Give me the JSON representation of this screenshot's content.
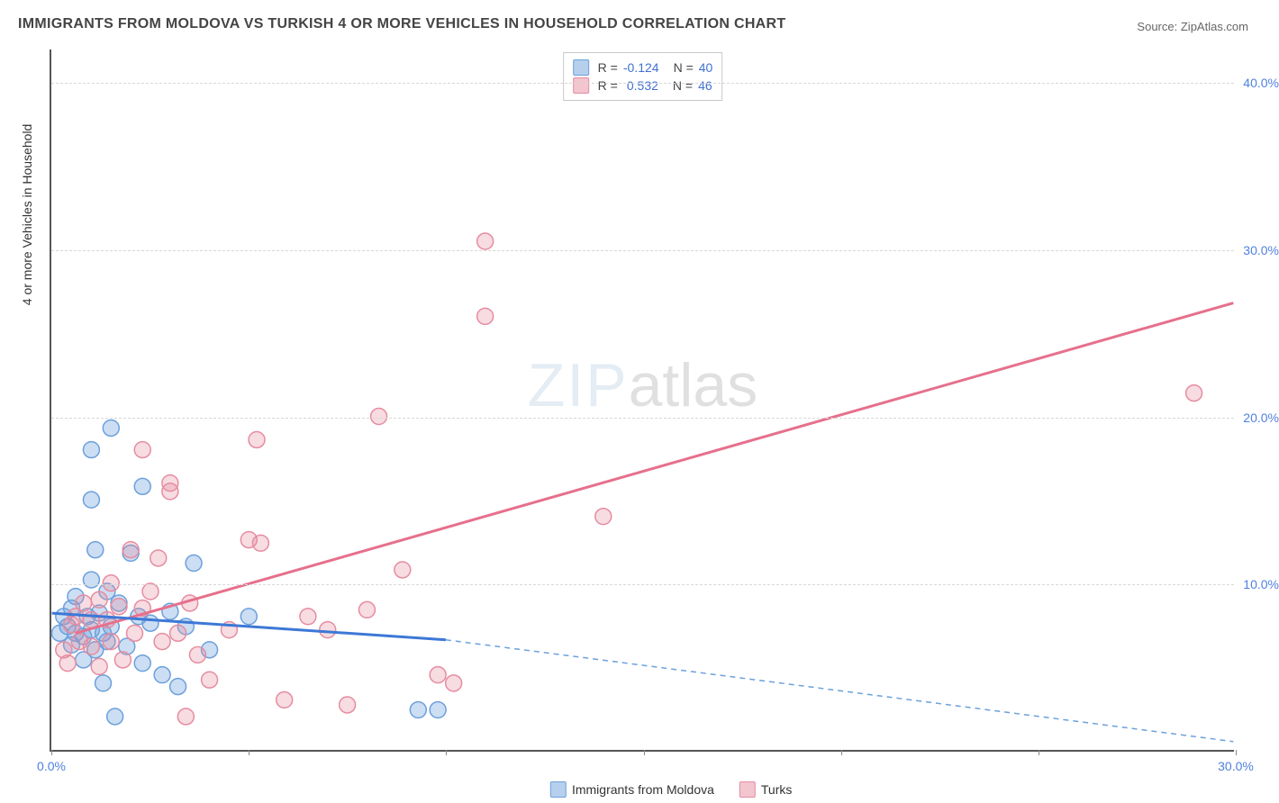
{
  "title": "IMMIGRANTS FROM MOLDOVA VS TURKISH 4 OR MORE VEHICLES IN HOUSEHOLD CORRELATION CHART",
  "source_label": "Source:",
  "source_value": "ZipAtlas.com",
  "y_axis_title": "4 or more Vehicles in Household",
  "watermark_a": "ZIP",
  "watermark_b": "atlas",
  "chart": {
    "type": "scatter-correlation",
    "background_color": "#ffffff",
    "grid_color": "#d8d8d8",
    "axis_color": "#555555",
    "tick_label_color": "#5080e0",
    "xlim": [
      0,
      30
    ],
    "ylim": [
      0,
      42
    ],
    "x_ticks": [
      0,
      5,
      10,
      15,
      20,
      25,
      30
    ],
    "y_ticks": [
      10,
      20,
      30,
      40
    ],
    "x_tick_labels": [
      "0.0%",
      "",
      "",
      "",
      "",
      "",
      "30.0%"
    ],
    "y_tick_labels": [
      "10.0%",
      "20.0%",
      "30.0%",
      "40.0%"
    ],
    "series": {
      "blue": {
        "label": "Immigrants from Moldova",
        "color_fill": "rgba(108,160,220,0.35)",
        "color_stroke": "#6ca0dc",
        "R": "-0.124",
        "N": "40",
        "trend_solid": {
          "x1": 0,
          "y1": 8.2,
          "x2": 10,
          "y2": 6.6
        },
        "trend_dash": {
          "x1": 10,
          "y1": 6.6,
          "x2": 30,
          "y2": 0.5
        },
        "marker_radius": 9,
        "points": [
          [
            0.2,
            7.0
          ],
          [
            0.3,
            8.0
          ],
          [
            0.4,
            7.4
          ],
          [
            0.5,
            6.3
          ],
          [
            0.5,
            8.5
          ],
          [
            0.6,
            7.0
          ],
          [
            0.6,
            9.2
          ],
          [
            0.8,
            6.8
          ],
          [
            0.8,
            5.4
          ],
          [
            0.9,
            8.0
          ],
          [
            1.0,
            7.2
          ],
          [
            1.0,
            10.2
          ],
          [
            1.1,
            6.0
          ],
          [
            1.1,
            12.0
          ],
          [
            1.2,
            8.2
          ],
          [
            1.3,
            7.0
          ],
          [
            1.3,
            4.0
          ],
          [
            1.4,
            9.5
          ],
          [
            1.4,
            6.5
          ],
          [
            1.5,
            7.4
          ],
          [
            1.5,
            19.3
          ],
          [
            1.6,
            2.0
          ],
          [
            1.7,
            8.8
          ],
          [
            1.9,
            6.2
          ],
          [
            2.0,
            11.8
          ],
          [
            2.2,
            8.0
          ],
          [
            2.3,
            5.2
          ],
          [
            2.3,
            15.8
          ],
          [
            2.5,
            7.6
          ],
          [
            1.0,
            18.0
          ],
          [
            1.0,
            15.0
          ],
          [
            2.8,
            4.5
          ],
          [
            3.0,
            8.3
          ],
          [
            3.2,
            3.8
          ],
          [
            3.4,
            7.4
          ],
          [
            3.6,
            11.2
          ],
          [
            4.0,
            6.0
          ],
          [
            9.3,
            2.4
          ],
          [
            9.8,
            2.4
          ],
          [
            5.0,
            8.0
          ]
        ]
      },
      "pink": {
        "label": "Turks",
        "color_fill": "rgba(230,140,160,0.30)",
        "color_stroke": "#e68ca0",
        "R": "0.532",
        "N": "46",
        "trend_solid": {
          "x1": 0.6,
          "y1": 7.0,
          "x2": 30,
          "y2": 26.8
        },
        "marker_radius": 9,
        "points": [
          [
            0.3,
            6.0
          ],
          [
            0.4,
            5.2
          ],
          [
            0.5,
            7.5
          ],
          [
            0.6,
            8.0
          ],
          [
            0.7,
            6.5
          ],
          [
            0.8,
            8.8
          ],
          [
            1.0,
            6.2
          ],
          [
            1.0,
            7.8
          ],
          [
            1.2,
            9.0
          ],
          [
            1.2,
            5.0
          ],
          [
            1.4,
            7.8
          ],
          [
            1.5,
            10.0
          ],
          [
            1.5,
            6.5
          ],
          [
            1.7,
            8.6
          ],
          [
            1.8,
            5.4
          ],
          [
            2.0,
            12.0
          ],
          [
            2.1,
            7.0
          ],
          [
            2.3,
            8.5
          ],
          [
            2.3,
            18.0
          ],
          [
            2.5,
            9.5
          ],
          [
            2.7,
            11.5
          ],
          [
            2.8,
            6.5
          ],
          [
            3.0,
            15.5
          ],
          [
            3.2,
            7.0
          ],
          [
            3.4,
            2.0
          ],
          [
            3.5,
            8.8
          ],
          [
            3.7,
            5.7
          ],
          [
            4.0,
            4.2
          ],
          [
            4.5,
            7.2
          ],
          [
            5.0,
            12.6
          ],
          [
            5.2,
            18.6
          ],
          [
            5.3,
            12.4
          ],
          [
            5.9,
            3.0
          ],
          [
            6.5,
            8.0
          ],
          [
            7.0,
            7.2
          ],
          [
            7.5,
            2.7
          ],
          [
            8.0,
            8.4
          ],
          [
            8.3,
            20.0
          ],
          [
            8.9,
            10.8
          ],
          [
            9.8,
            4.5
          ],
          [
            10.2,
            4.0
          ],
          [
            11.0,
            30.5
          ],
          [
            11.0,
            26.0
          ],
          [
            14.0,
            14.0
          ],
          [
            29.0,
            21.4
          ],
          [
            3.0,
            16.0
          ]
        ]
      }
    }
  },
  "legend_top": {
    "r_label": "R =",
    "n_label": "N ="
  },
  "legend_bottom": {
    "series1": "Immigrants from Moldova",
    "series2": "Turks"
  }
}
